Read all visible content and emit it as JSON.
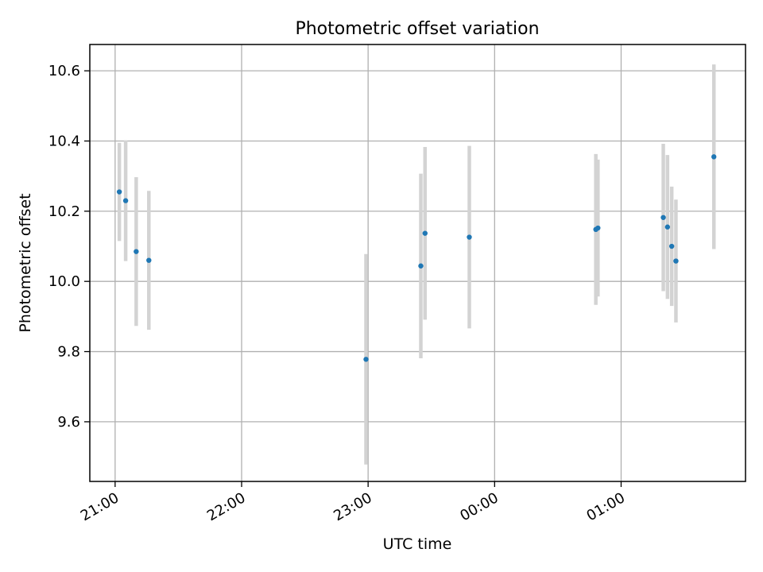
{
  "chart_data": {
    "type": "scatter",
    "title": "Photometric offset variation",
    "xlabel": "UTC time",
    "ylabel": "Photometric offset",
    "x_tick_labels": [
      "21:00",
      "22:00",
      "23:00",
      "00:00",
      "01:00"
    ],
    "x_tick_times": [
      "21:00",
      "22:00",
      "23:00",
      "00:00",
      "01:00"
    ],
    "y_ticks": [
      9.6,
      9.8,
      10.0,
      10.2,
      10.4,
      10.6
    ],
    "y_tick_labels": [
      "9.6",
      "9.8",
      "10.0",
      "10.2",
      "10.4",
      "10.6"
    ],
    "xlim": [
      "20:48",
      "01:59"
    ],
    "ylim": [
      9.43,
      10.675
    ],
    "grid": true,
    "points": [
      {
        "time": "21:02",
        "y": 10.255,
        "err_low": 10.115,
        "err_high": 10.395
      },
      {
        "time": "21:05",
        "y": 10.23,
        "err_low": 10.058,
        "err_high": 10.402
      },
      {
        "time": "21:10",
        "y": 10.085,
        "err_low": 9.873,
        "err_high": 10.297
      },
      {
        "time": "21:16",
        "y": 10.06,
        "err_low": 9.862,
        "err_high": 10.258
      },
      {
        "time": "22:59",
        "y": 9.778,
        "err_low": 9.478,
        "err_high": 10.078
      },
      {
        "time": "23:25",
        "y": 10.044,
        "err_low": 9.781,
        "err_high": 10.307
      },
      {
        "time": "23:27",
        "y": 10.137,
        "err_low": 9.891,
        "err_high": 10.383
      },
      {
        "time": "23:48",
        "y": 10.126,
        "err_low": 9.866,
        "err_high": 10.386
      },
      {
        "time": "00:48",
        "y": 10.148,
        "err_low": 9.933,
        "err_high": 10.363
      },
      {
        "time": "00:49",
        "y": 10.152,
        "err_low": 9.957,
        "err_high": 10.347
      },
      {
        "time": "01:20",
        "y": 10.182,
        "err_low": 9.972,
        "err_high": 10.392
      },
      {
        "time": "01:22",
        "y": 10.155,
        "err_low": 9.95,
        "err_high": 10.36
      },
      {
        "time": "01:24",
        "y": 10.1,
        "err_low": 9.93,
        "err_high": 10.27
      },
      {
        "time": "01:26",
        "y": 10.058,
        "err_low": 9.883,
        "err_high": 10.233
      },
      {
        "time": "01:44",
        "y": 10.355,
        "err_low": 10.092,
        "err_high": 10.618
      }
    ],
    "colors": {
      "marker": "#1f77b4",
      "errorbar": "#d3d3d3",
      "grid": "#b0b0b0",
      "axes": "#000000"
    }
  }
}
